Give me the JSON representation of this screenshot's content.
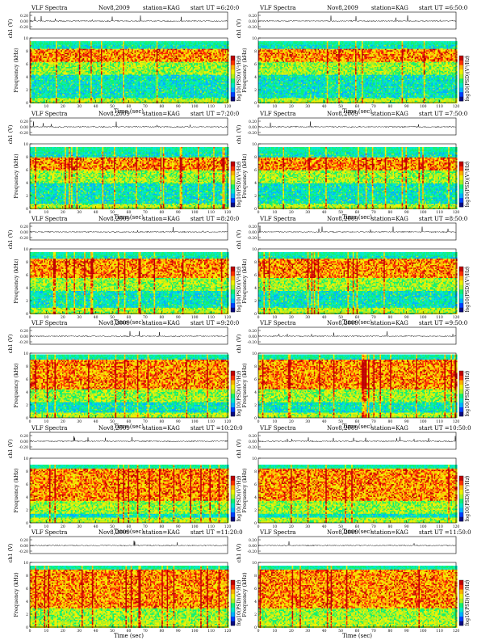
{
  "colors": {
    "spectrum": [
      "#0a0a80",
      "#0040ff",
      "#00b0ff",
      "#00e8c8",
      "#10f070",
      "#a8f020",
      "#f0f000",
      "#ffb000",
      "#ff3000",
      "#c00000"
    ],
    "trace": "#000000",
    "axis": "#000000"
  },
  "chart_data": [
    {
      "type": "heatmap",
      "panel_title": "VLF Spectra",
      "date": "Nov8,2009",
      "station": "station=KAG",
      "start": "start  UT =6:20:0",
      "line_ylabel": "ch1 (V)",
      "line_yticks": [
        "0.20",
        "0.00",
        "-0.20"
      ],
      "ylabel": "Frequency (kHz)",
      "yticks": [
        0,
        2,
        4,
        6,
        8,
        10
      ],
      "xlabel": "Time (sec)",
      "xlim": [
        0,
        120
      ],
      "xticks": [
        0,
        10,
        20,
        30,
        40,
        50,
        60,
        70,
        80,
        90,
        100,
        110,
        120
      ],
      "colorbar_label": "log10(PSD)(V²/Hz)",
      "colorbar_min": "-7",
      "colorbar_max": "-5",
      "band_top_khz": 9.5,
      "strong_band_khz": [
        6.5,
        8.5
      ]
    },
    {
      "type": "heatmap",
      "panel_title": "VLF Spectra",
      "date": "Nov8,2009",
      "station": "station=KAG",
      "start": "start  UT =6:50:0",
      "line_ylabel": "ch1 (V)",
      "line_yticks": [
        "0.20",
        "0.00",
        "-0.20"
      ],
      "ylabel": "Frequency (kHz)",
      "yticks": [
        0,
        2,
        4,
        6,
        8,
        10
      ],
      "xlabel": "Time (sec)",
      "xlim": [
        0,
        120
      ],
      "xticks": [
        0,
        10,
        20,
        30,
        40,
        50,
        60,
        70,
        80,
        90,
        100,
        110,
        120
      ],
      "colorbar_label": "log10(PSD)(V²/Hz)",
      "colorbar_min": "-7",
      "colorbar_max": "-5",
      "band_top_khz": 9.5,
      "strong_band_khz": [
        6.5,
        8.5
      ]
    },
    {
      "type": "heatmap",
      "panel_title": "VLF Spectra",
      "date": "Nov8,2009",
      "station": "station=KAG",
      "start": "start  UT =7:20:0",
      "line_ylabel": "ch1 (V)",
      "line_yticks": [
        "0.20",
        "0.00",
        "-0.20"
      ],
      "ylabel": "Frequency (kHz)",
      "yticks": [
        0,
        2,
        4,
        6,
        8,
        10
      ],
      "xlabel": "Time (sec)",
      "xlim": [
        0,
        120
      ],
      "xticks": [
        0,
        10,
        20,
        30,
        40,
        50,
        60,
        70,
        80,
        90,
        100,
        110,
        120
      ],
      "colorbar_label": "log10(PSD)(V²/Hz)",
      "colorbar_min": "-7",
      "colorbar_max": "-5",
      "band_top_khz": 9.5,
      "strong_band_khz": [
        6.0,
        8.0
      ]
    },
    {
      "type": "heatmap",
      "panel_title": "VLF Spectra",
      "date": "Nov8,2009",
      "station": "station=KAG",
      "start": "start  UT =7:50:0",
      "line_ylabel": "ch1 (V)",
      "line_yticks": [
        "0.20",
        "0.00",
        "-0.20"
      ],
      "ylabel": "Frequency (kHz)",
      "yticks": [
        0,
        2,
        4,
        6,
        8,
        10
      ],
      "xlabel": "Time (sec)",
      "xlim": [
        0,
        120
      ],
      "xticks": [
        0,
        10,
        20,
        30,
        40,
        50,
        60,
        70,
        80,
        90,
        100,
        110,
        120
      ],
      "colorbar_label": "log10(PSD)(V²/Hz)",
      "colorbar_min": "-7",
      "colorbar_max": "-5",
      "band_top_khz": 9.5,
      "strong_band_khz": [
        6.0,
        8.0
      ]
    },
    {
      "type": "heatmap",
      "panel_title": "VLF Spectra",
      "date": "Nov8,2009",
      "station": "station=KAG",
      "start": "start  UT =8:20:0",
      "line_ylabel": "ch1 (V)",
      "line_yticks": [
        "0.20",
        "0.00",
        "-0.20"
      ],
      "ylabel": "Frequency (kHz)",
      "yticks": [
        0,
        2,
        4,
        6,
        8,
        10
      ],
      "xlabel": "Time (sec)",
      "xlim": [
        0,
        120
      ],
      "xticks": [
        0,
        10,
        20,
        30,
        40,
        50,
        60,
        70,
        80,
        90,
        100,
        110,
        120
      ],
      "colorbar_label": "log10(PSD)(V²/Hz)",
      "colorbar_min": "-7",
      "colorbar_max": "-5",
      "band_top_khz": 9.5,
      "strong_band_khz": [
        5.5,
        8.5
      ]
    },
    {
      "type": "heatmap",
      "panel_title": "VLF Spectra",
      "date": "Nov8,2009",
      "station": "station=KAG",
      "start": "start  UT =8:50:0",
      "line_ylabel": "ch1 (V)",
      "line_yticks": [
        "0.20",
        "0.00",
        "-0.20"
      ],
      "ylabel": "Frequency (kHz)",
      "yticks": [
        0,
        2,
        4,
        6,
        8,
        10
      ],
      "xlabel": "Time (sec)",
      "xlim": [
        0,
        120
      ],
      "xticks": [
        0,
        10,
        20,
        30,
        40,
        50,
        60,
        70,
        80,
        90,
        100,
        110,
        120
      ],
      "colorbar_label": "log10(PSD)(V²/Hz)",
      "colorbar_min": "-7",
      "colorbar_max": "-5",
      "band_top_khz": 9.5,
      "strong_band_khz": [
        5.5,
        8.5
      ]
    },
    {
      "type": "heatmap",
      "panel_title": "VLF Spectra",
      "date": "Nov8,2009",
      "station": "station=KAG",
      "start": "start  UT =9:20:0",
      "line_ylabel": "ch1 (V)",
      "line_yticks": [
        "0.20",
        "0.00",
        "-0.20"
      ],
      "ylabel": "Frequency (kHz)",
      "yticks": [
        0,
        2,
        4,
        6,
        8,
        10
      ],
      "xlabel": "Time (sec)",
      "xlim": [
        0,
        120
      ],
      "xticks": [
        0,
        10,
        20,
        30,
        40,
        50,
        60,
        70,
        80,
        90,
        100,
        110,
        120
      ],
      "colorbar_label": "log10(PSD)(V²/Hz)",
      "colorbar_min": "-7",
      "colorbar_max": "-5",
      "band_top_khz": 9.8,
      "strong_band_khz": [
        4.5,
        9.0
      ]
    },
    {
      "type": "heatmap",
      "panel_title": "VLF Spectra",
      "date": "Nov8,2009",
      "station": "station=KAG",
      "start": "start  UT =9:50:0",
      "line_ylabel": "ch1 (V)",
      "line_yticks": [
        "0.20",
        "0.00",
        "-0.20"
      ],
      "ylabel": "Frequency (kHz)",
      "yticks": [
        0,
        2,
        4,
        6,
        8,
        10
      ],
      "xlabel": "Time (sec)",
      "xlim": [
        0,
        120
      ],
      "xticks": [
        0,
        10,
        20,
        30,
        40,
        50,
        60,
        70,
        80,
        90,
        100,
        110,
        120
      ],
      "colorbar_label": "log10(PSD)(V²/Hz)",
      "colorbar_min": "-7",
      "colorbar_max": "-5",
      "band_top_khz": 9.8,
      "strong_band_khz": [
        4.5,
        9.0
      ]
    },
    {
      "type": "heatmap",
      "panel_title": "VLF Spectra",
      "date": "Nov8,2009",
      "station": "station=KAG",
      "start": "start  UT =10:20:0",
      "line_ylabel": "ch1 (V)",
      "line_yticks": [
        "0.20",
        "0.00",
        "-0.20"
      ],
      "ylabel": "Frequency (kHz)",
      "yticks": [
        0,
        2,
        4,
        6,
        8,
        10
      ],
      "xlabel": "Time (sec)",
      "xlim": [
        0,
        120
      ],
      "xticks": [
        0,
        10,
        20,
        30,
        40,
        50,
        60,
        70,
        80,
        90,
        100,
        110,
        120
      ],
      "colorbar_label": "log10(PSD)(V²/Hz)",
      "colorbar_min": "-7",
      "colorbar_max": "-5",
      "band_top_khz": 9.0,
      "strong_band_khz": [
        3.5,
        9.0
      ]
    },
    {
      "type": "heatmap",
      "panel_title": "VLF Spectra",
      "date": "Nov8,2009",
      "station": "station=KAG",
      "start": "start  UT =10:50:0",
      "line_ylabel": "ch1 (V)",
      "line_yticks": [
        "0.20",
        "0.00",
        "-0.20"
      ],
      "ylabel": "Frequency (kHz)",
      "yticks": [
        0,
        2,
        4,
        6,
        8,
        10
      ],
      "xlabel": "Time (sec)",
      "xlim": [
        0,
        120
      ],
      "xticks": [
        0,
        10,
        20,
        30,
        40,
        50,
        60,
        70,
        80,
        90,
        100,
        110,
        120
      ],
      "colorbar_label": "log10(PSD)(V²/Hz)",
      "colorbar_min": "-7",
      "colorbar_max": "-5",
      "band_top_khz": 9.0,
      "strong_band_khz": [
        3.5,
        9.0
      ]
    },
    {
      "type": "heatmap",
      "panel_title": "VLF Spectra",
      "date": "Nov8,2009",
      "station": "station=KAG",
      "start": "start  UT =11:20:0",
      "line_ylabel": "ch1 (V)",
      "line_yticks": [
        "0.20",
        "0.00",
        "-0.20"
      ],
      "ylabel": "Frequency (kHz)",
      "yticks": [
        0,
        2,
        4,
        6,
        8,
        10
      ],
      "xlabel": "Time (sec)",
      "xlim": [
        0,
        120
      ],
      "xticks": [
        0,
        10,
        20,
        30,
        40,
        50,
        60,
        70,
        80,
        90,
        100,
        110,
        120
      ],
      "colorbar_label": "log10(PSD)(V²/Hz)",
      "colorbar_min": "-7",
      "colorbar_max": "-5",
      "band_top_khz": 9.5,
      "strong_band_khz": [
        3.0,
        9.5
      ]
    },
    {
      "type": "heatmap",
      "panel_title": "VLF Spectra",
      "date": "Nov8,2009",
      "station": "station=KAG",
      "start": "start  UT =11:50:0",
      "line_ylabel": "ch1 (V)",
      "line_yticks": [
        "0.20",
        "0.00",
        "-0.20"
      ],
      "ylabel": "Frequency (kHz)",
      "yticks": [
        0,
        2,
        4,
        6,
        8,
        10
      ],
      "xlabel": "Time (sec)",
      "xlim": [
        0,
        120
      ],
      "xticks": [
        0,
        10,
        20,
        30,
        40,
        50,
        60,
        70,
        80,
        90,
        100,
        110,
        120
      ],
      "colorbar_label": "log10(PSD)(V²/Hz)",
      "colorbar_min": "-7",
      "colorbar_max": "-5",
      "band_top_khz": 9.5,
      "strong_band_khz": [
        3.0,
        9.5
      ]
    }
  ]
}
